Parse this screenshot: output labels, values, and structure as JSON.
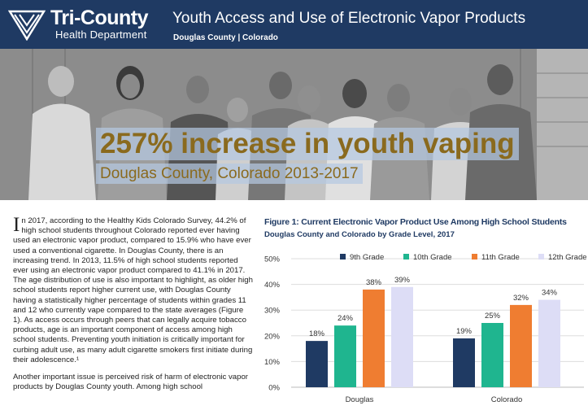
{
  "header": {
    "org_name": "Tri-County",
    "org_dept": "Health Department",
    "title": "Youth Access and Use of Electronic Vapor Products",
    "subtitle": "Douglas County | Colorado",
    "background_color": "#1f3a63"
  },
  "banner": {
    "headline": "257% increase in youth vaping",
    "subheadline": "Douglas County, Colorado 2013-2017",
    "text_color": "#8a6a1e"
  },
  "article": {
    "para1_dropcap": "I",
    "para1": "n 2017, according to the Healthy Kids Colorado Survey, 44.2% of high school students throughout Colorado reported ever having used an electronic vapor product, compared to 15.9% who have ever used a conventional cigarette. In Douglas County, there is an increasing trend. In 2013, 11.5% of high school students reported ever using an electronic vapor product compared to 41.1% in 2017. The age distribution of use is also important to highlight, as older high school students report higher current use, with Douglas County having a statistically higher percentage of students within grades 11 and 12 who currently vape compared to the state averages (Figure 1). As access occurs through peers that can legally acquire tobacco products, age is an important component of access among high school students. Preventing youth initiation is critically important for curbing adult use, as many adult cigarette smokers first initiate during their adolescence.¹",
    "para2": "Another important issue is perceived risk of harm of electronic vapor products by Douglas County youth.  Among high school"
  },
  "figure": {
    "title": "Figure 1: Current Electronic Vapor Product Use Among High School Students",
    "subtitle": "Douglas County and Colorado by Grade Level, 2017"
  },
  "chart_data": {
    "type": "bar",
    "title": "Figure 1: Current Electronic Vapor Product Use Among High School Students",
    "subtitle": "Douglas County and Colorado by Grade Level, 2017",
    "categories": [
      "Douglas",
      "Colorado"
    ],
    "series": [
      {
        "name": "9th Grade",
        "values": [
          18,
          19
        ],
        "labels": [
          "18%",
          "19%"
        ],
        "color": "#1f3a63"
      },
      {
        "name": "10th Grade",
        "values": [
          24,
          25
        ],
        "labels": [
          "24%",
          "25%"
        ],
        "color": "#1fb58f"
      },
      {
        "name": "11th Grade",
        "values": [
          38,
          32
        ],
        "labels": [
          "38%",
          "32%"
        ],
        "color": "#ef7d31"
      },
      {
        "name": "12th Grade",
        "values": [
          39,
          34
        ],
        "labels": [
          "39%",
          "34%"
        ],
        "color": "#ddddf6"
      }
    ],
    "yticks": [
      "0%",
      "10%",
      "20%",
      "30%",
      "40%",
      "50%"
    ],
    "ylim": [
      0,
      50
    ],
    "grid": true,
    "legend": "top"
  }
}
